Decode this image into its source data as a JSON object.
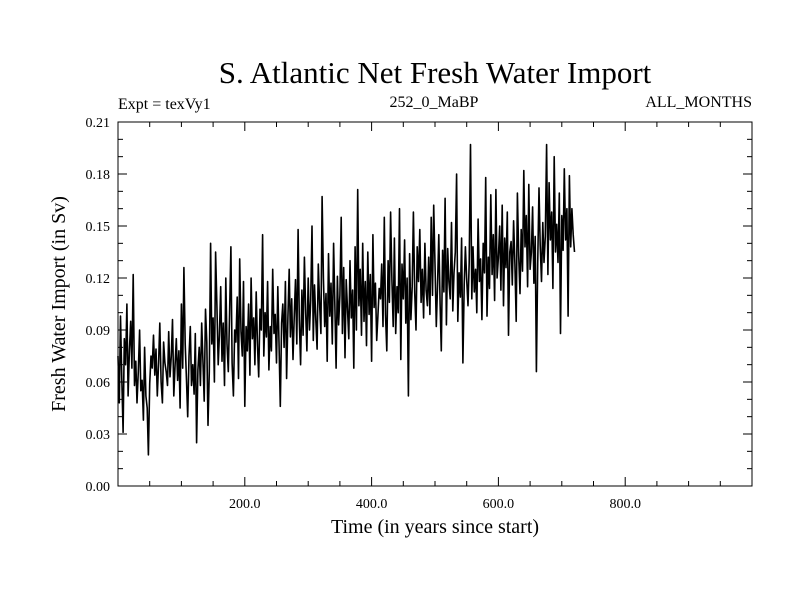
{
  "chart_data": {
    "type": "line",
    "title": "S. Atlantic Net Fresh Water Import",
    "header": {
      "left": "Expt = texVy1",
      "center": "252_0_MaBP",
      "right": "ALL_MONTHS"
    },
    "xlabel": "Time (in years since start)",
    "ylabel": "Fresh Water Import (in Sv)",
    "xlim": [
      0,
      1000
    ],
    "ylim": [
      0,
      0.21
    ],
    "x_ticks": [
      200,
      400,
      600,
      800
    ],
    "x_tick_labels": [
      "200.0",
      "400.0",
      "600.0",
      "800.0"
    ],
    "y_ticks": [
      0,
      0.03,
      0.06,
      0.09,
      0.12,
      0.15,
      0.18,
      0.21
    ],
    "y_tick_labels": [
      "0.00",
      "0.03",
      "0.06",
      "0.09",
      "0.12",
      "0.15",
      "0.18",
      "0.21"
    ],
    "series": [
      {
        "name": "Net fresh water import",
        "x_start": 0,
        "x_step": 2,
        "values": [
          0.075,
          0.048,
          0.098,
          0.062,
          0.031,
          0.085,
          0.07,
          0.105,
          0.052,
          0.078,
          0.095,
          0.068,
          0.122,
          0.058,
          0.072,
          0.048,
          0.066,
          0.09,
          0.055,
          0.061,
          0.038,
          0.08,
          0.052,
          0.045,
          0.018,
          0.059,
          0.075,
          0.068,
          0.087,
          0.064,
          0.079,
          0.052,
          0.071,
          0.094,
          0.06,
          0.048,
          0.083,
          0.071,
          0.066,
          0.058,
          0.089,
          0.063,
          0.075,
          0.096,
          0.052,
          0.07,
          0.085,
          0.061,
          0.078,
          0.045,
          0.105,
          0.068,
          0.126,
          0.082,
          0.061,
          0.04,
          0.075,
          0.092,
          0.058,
          0.07,
          0.053,
          0.088,
          0.025,
          0.067,
          0.08,
          0.058,
          0.094,
          0.071,
          0.049,
          0.102,
          0.083,
          0.035,
          0.066,
          0.14,
          0.082,
          0.097,
          0.06,
          0.135,
          0.104,
          0.07,
          0.087,
          0.115,
          0.072,
          0.094,
          0.058,
          0.12,
          0.082,
          0.066,
          0.1,
          0.138,
          0.071,
          0.052,
          0.09,
          0.083,
          0.109,
          0.062,
          0.131,
          0.089,
          0.075,
          0.118,
          0.046,
          0.092,
          0.078,
          0.105,
          0.064,
          0.12,
          0.085,
          0.097,
          0.07,
          0.112,
          0.081,
          0.063,
          0.102,
          0.09,
          0.145,
          0.075,
          0.1,
          0.086,
          0.118,
          0.067,
          0.092,
          0.078,
          0.125,
          0.088,
          0.099,
          0.071,
          0.115,
          0.083,
          0.046,
          0.094,
          0.105,
          0.08,
          0.118,
          0.062,
          0.097,
          0.125,
          0.086,
          0.108,
          0.073,
          0.099,
          0.119,
          0.082,
          0.148,
          0.096,
          0.07,
          0.113,
          0.087,
          0.132,
          0.1,
          0.078,
          0.12,
          0.09,
          0.107,
          0.15,
          0.084,
          0.116,
          0.096,
          0.079,
          0.128,
          0.105,
          0.088,
          0.167,
          0.12,
          0.092,
          0.111,
          0.072,
          0.134,
          0.098,
          0.117,
          0.082,
          0.14,
          0.106,
          0.068,
          0.121,
          0.093,
          0.11,
          0.155,
          0.088,
          0.126,
          0.074,
          0.119,
          0.102,
          0.085,
          0.13,
          0.097,
          0.113,
          0.068,
          0.138,
          0.09,
          0.171,
          0.104,
          0.125,
          0.087,
          0.14,
          0.095,
          0.118,
          0.081,
          0.135,
          0.099,
          0.122,
          0.072,
          0.145,
          0.103,
          0.117,
          0.084,
          0.098,
          0.114,
          0.108,
          0.128,
          0.092,
          0.155,
          0.099,
          0.078,
          0.13,
          0.106,
          0.158,
          0.119,
          0.092,
          0.143,
          0.088,
          0.115,
          0.1,
          0.16,
          0.073,
          0.128,
          0.108,
          0.142,
          0.094,
          0.12,
          0.052,
          0.134,
          0.096,
          0.115,
          0.158,
          0.112,
          0.09,
          0.138,
          0.118,
          0.148,
          0.106,
          0.125,
          0.097,
          0.14,
          0.113,
          0.104,
          0.132,
          0.099,
          0.155,
          0.11,
          0.162,
          0.128,
          0.092,
          0.115,
          0.145,
          0.105,
          0.078,
          0.136,
          0.112,
          0.166,
          0.093,
          0.137,
          0.118,
          0.108,
          0.152,
          0.101,
          0.123,
          0.135,
          0.18,
          0.095,
          0.123,
          0.109,
          0.143,
          0.071,
          0.116,
          0.138,
          0.119,
          0.104,
          0.129,
          0.197,
          0.108,
          0.138,
          0.112,
          0.125,
          0.1,
          0.154,
          0.118,
          0.131,
          0.096,
          0.14,
          0.123,
          0.178,
          0.098,
          0.132,
          0.114,
          0.168,
          0.122,
          0.145,
          0.107,
          0.171,
          0.12,
          0.132,
          0.15,
          0.113,
          0.162,
          0.104,
          0.143,
          0.126,
          0.158,
          0.087,
          0.135,
          0.141,
          0.116,
          0.153,
          0.128,
          0.095,
          0.169,
          0.133,
          0.111,
          0.148,
          0.124,
          0.182,
          0.138,
          0.156,
          0.115,
          0.174,
          0.125,
          0.135,
          0.161,
          0.117,
          0.144,
          0.066,
          0.128,
          0.172,
          0.139,
          0.118,
          0.152,
          0.129,
          0.144,
          0.197,
          0.122,
          0.175,
          0.142,
          0.158,
          0.114,
          0.19,
          0.135,
          0.151,
          0.129,
          0.169,
          0.088,
          0.156,
          0.136,
          0.183,
          0.142,
          0.16,
          0.098,
          0.179,
          0.138,
          0.16,
          0.145,
          0.135
        ]
      }
    ]
  }
}
